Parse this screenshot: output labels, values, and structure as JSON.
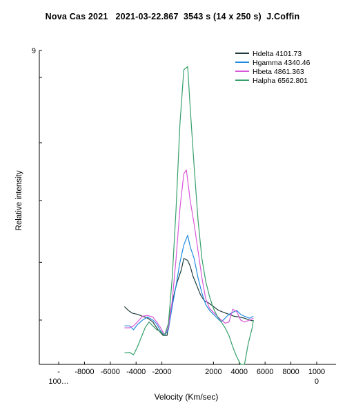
{
  "chart_data": {
    "type": "line",
    "title": "Nova Cas 2021   2021-03-22.867  3543 s (14 x 250 s)  J.Coffin",
    "xlabel": "Velocity (Km/sec)",
    "ylabel": "Relative intensity",
    "xlim": [
      -11500,
      11500
    ],
    "ylim": [
      0.85,
      9.0
    ],
    "x_ticks": [
      {
        "value": -10000,
        "label": [
          "-",
          "100…"
        ]
      },
      {
        "value": -8000,
        "label": [
          "-8000"
        ]
      },
      {
        "value": -6000,
        "label": [
          "-6000"
        ]
      },
      {
        "value": -4000,
        "label": [
          "-4000"
        ]
      },
      {
        "value": -2000,
        "label": [
          "-2000"
        ]
      },
      {
        "value": 2000,
        "label": [
          "2000"
        ]
      },
      {
        "value": 4000,
        "label": [
          "4000"
        ]
      },
      {
        "value": 6000,
        "label": [
          "6000"
        ]
      },
      {
        "value": 8000,
        "label": [
          "8000"
        ]
      },
      {
        "value": 10000,
        "label": [
          "1000",
          "0"
        ]
      }
    ],
    "y_ticks": [
      {
        "value": 9,
        "label": "9"
      },
      {
        "value": 8.3,
        "label": ""
      },
      {
        "value": 6.6,
        "label": ""
      },
      {
        "value": 5.1,
        "label": ""
      },
      {
        "value": 3.5,
        "label": ""
      },
      {
        "value": 2.0,
        "label": ""
      }
    ],
    "grid": false,
    "legend_position": "top-right",
    "series": [
      {
        "name": "Hdelta  4101.73",
        "color": "#1f3b3b",
        "x": [
          -4900,
          -4600,
          -4300,
          -3900,
          -3500,
          -3100,
          -2700,
          -2300,
          -1900,
          -1600,
          -1300,
          -1000,
          -800,
          -500,
          -300,
          0,
          200,
          400,
          700,
          1000,
          1300,
          1600,
          2000,
          2400,
          2800,
          3200,
          3600,
          4000,
          4400,
          4800,
          5100
        ],
        "y": [
          2.35,
          2.25,
          2.18,
          2.15,
          2.1,
          2.05,
          1.95,
          1.75,
          1.6,
          1.6,
          2.3,
          2.75,
          3.0,
          3.3,
          3.6,
          3.55,
          3.4,
          3.15,
          2.9,
          2.65,
          2.5,
          2.45,
          2.35,
          2.25,
          2.2,
          2.15,
          2.1,
          2.08,
          2.05,
          2.0,
          1.98
        ]
      },
      {
        "name": "Hgamma  4340.46",
        "color": "#1e8be0",
        "x": [
          -4900,
          -4500,
          -4200,
          -3900,
          -3500,
          -3100,
          -2700,
          -2400,
          -2100,
          -1800,
          -1500,
          -1200,
          -900,
          -600,
          -300,
          0,
          200,
          500,
          800,
          1100,
          1400,
          1700,
          2000,
          2300,
          2600,
          2900,
          3200,
          3500,
          3800,
          4100,
          4400,
          4800,
          5100
        ],
        "y": [
          1.85,
          1.85,
          1.75,
          1.88,
          2.0,
          2.08,
          2.0,
          1.9,
          1.72,
          1.6,
          1.75,
          2.35,
          2.9,
          3.5,
          3.95,
          4.2,
          3.9,
          3.6,
          3.1,
          2.7,
          2.4,
          2.25,
          2.15,
          2.05,
          1.95,
          2.05,
          2.15,
          2.2,
          2.25,
          2.15,
          2.1,
          2.05,
          2.1
        ]
      },
      {
        "name": "Hbeta  4861.363",
        "color": "#d957d9",
        "x": [
          -4900,
          -4500,
          -4200,
          -3900,
          -3500,
          -3100,
          -2700,
          -2400,
          -2100,
          -1800,
          -1500,
          -1200,
          -900,
          -600,
          -300,
          -100,
          200,
          500,
          800,
          1100,
          1400,
          1700,
          2000,
          2300,
          2600,
          2900,
          3200,
          3500,
          3800,
          4100,
          4400,
          4800,
          5100
        ],
        "y": [
          1.8,
          1.8,
          1.85,
          1.95,
          2.1,
          2.12,
          2.08,
          1.95,
          1.8,
          1.62,
          1.8,
          2.5,
          3.6,
          4.9,
          5.8,
          5.9,
          5.1,
          4.5,
          3.8,
          3.1,
          2.55,
          2.3,
          2.2,
          2.1,
          2.0,
          1.92,
          1.95,
          2.28,
          2.22,
          2.0,
          1.95,
          2.0,
          2.05
        ]
      },
      {
        "name": "Halpha  6562.801",
        "color": "#35a06a",
        "x": [
          -4900,
          -4500,
          -4200,
          -3900,
          -3600,
          -3300,
          -3000,
          -2700,
          -2400,
          -2100,
          -1800,
          -1500,
          -1200,
          -900,
          -600,
          -300,
          0,
          200,
          500,
          800,
          1100,
          1400,
          1700,
          2000,
          2300,
          2600,
          2900,
          3200,
          3500,
          3800,
          4100,
          4400,
          4700,
          5000,
          5100
        ],
        "y": [
          1.15,
          1.16,
          1.1,
          1.3,
          1.55,
          1.8,
          1.95,
          1.85,
          1.75,
          1.7,
          1.6,
          1.9,
          3.1,
          4.9,
          7.1,
          8.5,
          8.58,
          7.5,
          6.0,
          4.6,
          3.6,
          3.0,
          2.6,
          2.3,
          2.1,
          1.95,
          1.8,
          1.6,
          1.3,
          1.05,
          0.85,
          0.85,
          1.4,
          1.8,
          2.0
        ]
      }
    ]
  }
}
